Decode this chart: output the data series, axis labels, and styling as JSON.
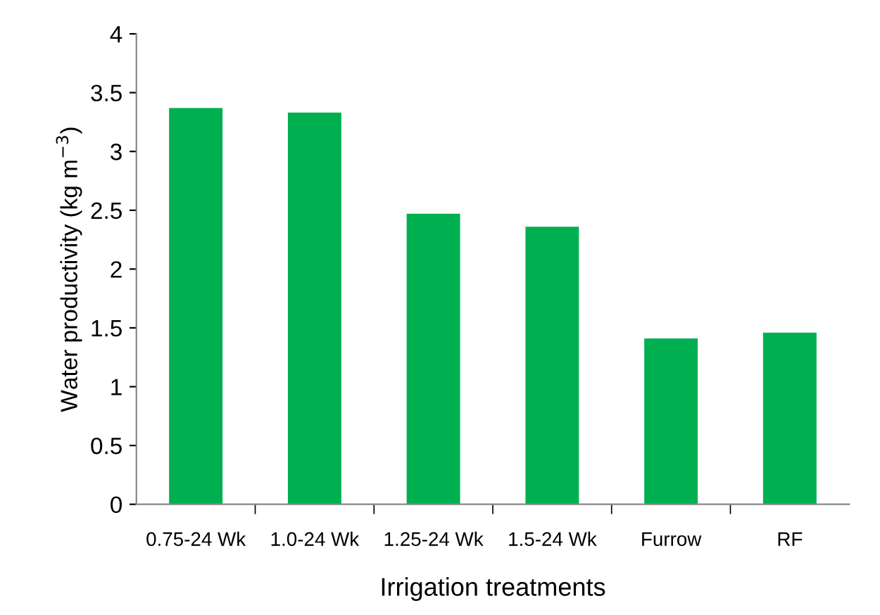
{
  "chart_data": {
    "type": "bar",
    "xlabel": "Irrigation treatments",
    "ylabel": "Water productivity (kg m$^{−3}$)",
    "categories": [
      "0.75-24 Wk",
      "1.0-24 Wk",
      "1.25-24 Wk",
      "1.5-24 Wk",
      "Furrow",
      "RF"
    ],
    "values": [
      3.37,
      3.33,
      2.47,
      2.36,
      1.41,
      1.46
    ],
    "color": "#00b050",
    "ylim": [
      0,
      4
    ],
    "yticks": [
      0,
      0.5,
      1,
      1.5,
      2,
      2.5,
      3,
      3.5,
      4
    ],
    "grid": false
  }
}
